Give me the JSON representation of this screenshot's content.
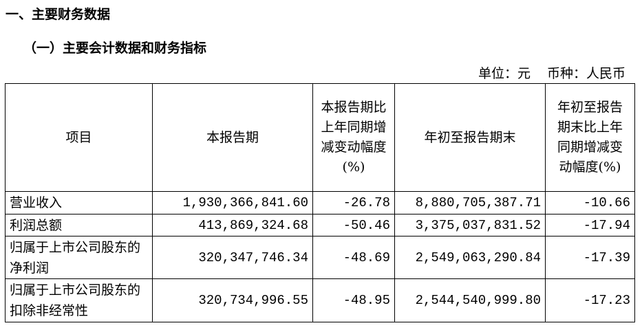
{
  "section_title": "一、主要财务数据",
  "subsection_title": "（一）主要会计数据和财务指标",
  "unit_label": "单位：元",
  "currency_label": "币种：人民币",
  "table": {
    "headers": [
      "项目",
      "本报告期",
      "本报告期比上年同期增减变动幅度(%)",
      "年初至报告期末",
      "年初至报告期末比上年同期增减变动幅度(%)"
    ],
    "rows": [
      {
        "item": "营业收入",
        "current": "1,930,366,841.60",
        "current_change": "-26.78",
        "ytd": "8,880,705,387.71",
        "ytd_change": "-10.66"
      },
      {
        "item": "利润总额",
        "current": "413,869,324.68",
        "current_change": "-50.46",
        "ytd": "3,375,037,831.52",
        "ytd_change": "-17.94"
      },
      {
        "item": "归属于上市公司股东的净利润",
        "current": "320,347,746.34",
        "current_change": "-48.69",
        "ytd": "2,549,063,290.84",
        "ytd_change": "-17.39"
      },
      {
        "item": "归属于上市公司股东的扣除非经常性",
        "current": "320,734,996.55",
        "current_change": "-48.95",
        "ytd": "2,544,540,999.80",
        "ytd_change": "-17.23"
      }
    ]
  }
}
